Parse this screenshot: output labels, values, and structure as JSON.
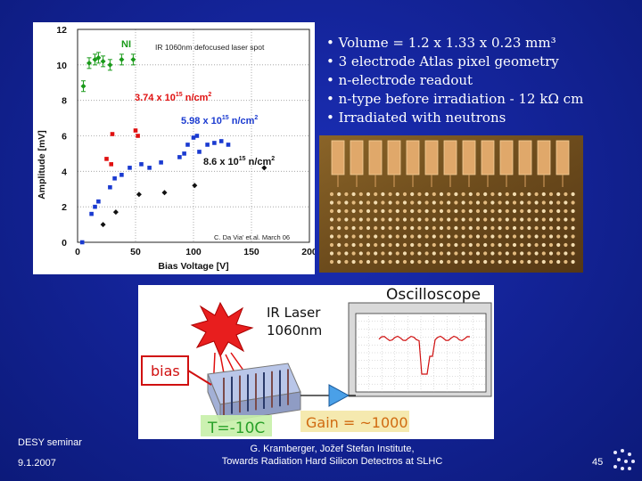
{
  "chart_data": {
    "type": "scatter",
    "xlabel": "Bias Voltage [V]",
    "ylabel": "Amplitude [mV]",
    "xlim": [
      0,
      200
    ],
    "ylim": [
      0,
      12
    ],
    "xticks": [
      0,
      50,
      100,
      150,
      200
    ],
    "yticks": [
      0,
      2,
      4,
      6,
      8,
      10,
      12
    ],
    "grid": true,
    "title_note": "IR 1060nm defocused laser spot",
    "credit": "C. Da Via' et.al. March 06",
    "series": [
      {
        "name": "NI",
        "color": "#1a9a1a",
        "marker": "diamond-errorbar",
        "x": [
          5,
          10,
          15,
          18,
          22,
          28,
          38,
          48
        ],
        "y": [
          8.8,
          10.1,
          10.3,
          10.4,
          10.2,
          10.0,
          10.3,
          10.3
        ]
      },
      {
        "name": "3.74 x 10^15 n/cm^2",
        "color": "#e01010",
        "marker": "square",
        "x": [
          25,
          29,
          30,
          50,
          52
        ],
        "y": [
          4.7,
          4.4,
          6.1,
          6.3,
          6.0
        ]
      },
      {
        "name": "5.98 x 10^15 n/cm^2",
        "color": "#1a3ad0",
        "marker": "square",
        "x": [
          4,
          12,
          15,
          18,
          28,
          32,
          38,
          45,
          55,
          62,
          72,
          88,
          92,
          95,
          100,
          103,
          105,
          112,
          118,
          124,
          130
        ],
        "y": [
          0.0,
          1.6,
          2.0,
          2.3,
          3.1,
          3.6,
          3.8,
          4.2,
          4.4,
          4.2,
          4.5,
          4.8,
          5.0,
          5.5,
          5.9,
          6.0,
          5.1,
          5.5,
          5.6,
          5.7,
          5.5
        ]
      },
      {
        "name": "8.6 x 10^15 n/cm^2",
        "color": "#111111",
        "marker": "diamond",
        "x": [
          22,
          33,
          53,
          75,
          101,
          161
        ],
        "y": [
          1.0,
          1.7,
          2.7,
          2.8,
          3.2,
          4.2
        ]
      }
    ]
  },
  "chart_text": {
    "ni_label": "NI",
    "laser_label": "IR 1060nm defocused laser spot",
    "series2_label": "3.74 x 10",
    "series2_exp": "15",
    "series2_unit": " n/cm",
    "series2_pow": "2",
    "series3_label": "5.98 x 10",
    "series3_exp": "15",
    "series3_unit": " n/cm",
    "series3_pow": "2",
    "series4_label": "8.6 x 10",
    "series4_exp": "15",
    "series4_unit": " n/cm",
    "series4_pow": "2",
    "credit": "C. Da Via' et.al. March 06"
  },
  "bullets": [
    "• Volume = 1.2 x 1.33 x 0.23 mm³",
    "• 3 electrode Atlas pixel geometry",
    "• n-electrode readout",
    "• n-type before irradiation - 12 kΩ cm",
    "• Irradiated with neutrons"
  ],
  "diagram": {
    "oscilloscope_label": "Oscilloscope",
    "laser_label_1": "IR Laser",
    "laser_label_2": "1060nm",
    "bias_label": "bias",
    "temp_label": "T=-10C",
    "gain_label": "Gain = ~1000"
  },
  "footer": {
    "left_line1": "DESY seminar",
    "left_line2": "9.1.2007",
    "center_line1": "G. Kramberger, Jožef Stefan Institute,",
    "center_line2": "Towards Radiation Hard Silicon Detectros at SLHC",
    "page_number": "45"
  },
  "colors": {
    "background": "#14249a",
    "ni": "#1a9a1a",
    "red": "#e01010",
    "blue": "#1a3ad0",
    "black": "#111111"
  }
}
